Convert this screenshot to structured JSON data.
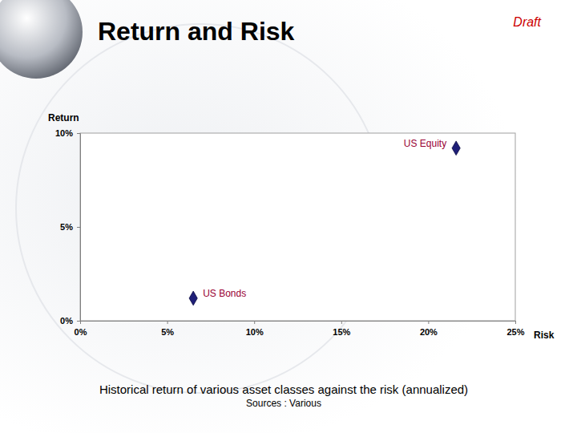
{
  "chart_data": {
    "type": "scatter",
    "title": "Return and Risk",
    "note": "Draft",
    "caption": "Historical return of various asset classes against the risk (annualized)",
    "source": "Sources : Various",
    "xlabel": "Risk",
    "ylabel": "Return",
    "x": [
      21.6,
      6.5
    ],
    "values": [
      9.2,
      1.2
    ],
    "labels": [
      "US Equity",
      "US Bonds"
    ],
    "color": "#1f1f78",
    "marker": "diamond",
    "grid": false,
    "xlim": [
      0,
      25
    ],
    "xticks": [
      {
        "value": 0,
        "label": "0%"
      },
      {
        "value": 5,
        "label": "5%"
      },
      {
        "value": 10,
        "label": "10%"
      },
      {
        "value": 15,
        "label": "15%"
      },
      {
        "value": 20,
        "label": "20%"
      },
      {
        "value": 25,
        "label": "25%"
      }
    ],
    "ylim": [
      0,
      10
    ],
    "yticks": [
      {
        "value": 0,
        "label": "0%"
      },
      {
        "value": 5,
        "label": "5%"
      },
      {
        "value": 10,
        "label": "10%"
      }
    ]
  }
}
